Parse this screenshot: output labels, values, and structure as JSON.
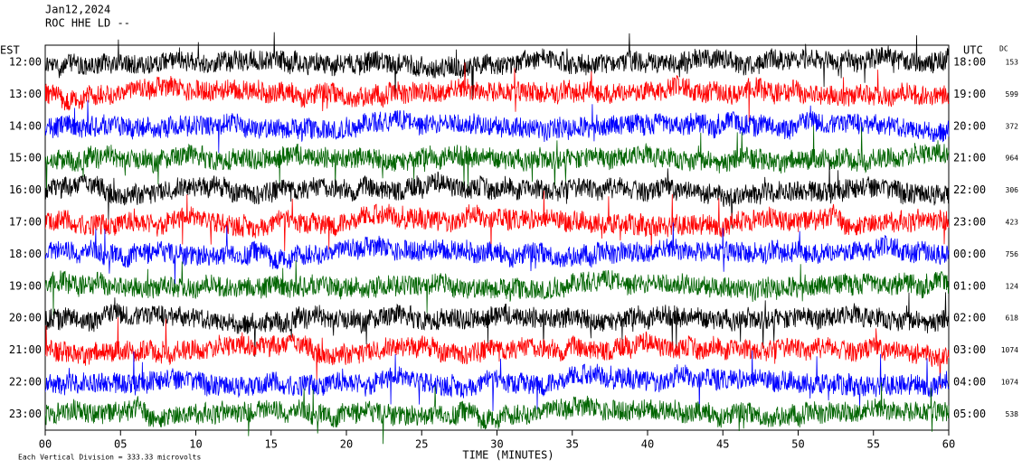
{
  "chart_data": {
    "type": "helicorder",
    "title_lines": [
      "Jan12,2024",
      "ROC HHE LD --"
    ],
    "left_axis_label": "EST",
    "right_axis_label": "UTC",
    "dc_label": "DC",
    "rows": [
      {
        "local": "12:00",
        "utc": "18:00",
        "dc": 153,
        "color": "#000000"
      },
      {
        "local": "13:00",
        "utc": "19:00",
        "dc": 599,
        "color": "#ff0000"
      },
      {
        "local": "14:00",
        "utc": "20:00",
        "dc": 372,
        "color": "#0000ff"
      },
      {
        "local": "15:00",
        "utc": "21:00",
        "dc": 964,
        "color": "#006400"
      },
      {
        "local": "16:00",
        "utc": "22:00",
        "dc": 306,
        "color": "#000000"
      },
      {
        "local": "17:00",
        "utc": "23:00",
        "dc": 423,
        "color": "#ff0000"
      },
      {
        "local": "18:00",
        "utc": "00:00",
        "dc": 756,
        "color": "#0000ff"
      },
      {
        "local": "19:00",
        "utc": "01:00",
        "dc": 124,
        "color": "#006400"
      },
      {
        "local": "20:00",
        "utc": "02:00",
        "dc": 618,
        "color": "#000000"
      },
      {
        "local": "21:00",
        "utc": "03:00",
        "dc": 1074,
        "color": "#ff0000"
      },
      {
        "local": "22:00",
        "utc": "04:00",
        "dc": 1074,
        "color": "#0000ff"
      },
      {
        "local": "23:00",
        "utc": "05:00",
        "dc": 538,
        "color": "#006400"
      }
    ],
    "xlabel": "TIME (MINUTES)",
    "xlim": [
      0,
      60
    ],
    "xticks": [
      {
        "value": 0,
        "label": "00"
      },
      {
        "value": 5,
        "label": "05"
      },
      10,
      15,
      20,
      25,
      30,
      35,
      40,
      45,
      50,
      55,
      60
    ],
    "footer": "Each Vertical Division =  333.33 microvolts"
  }
}
